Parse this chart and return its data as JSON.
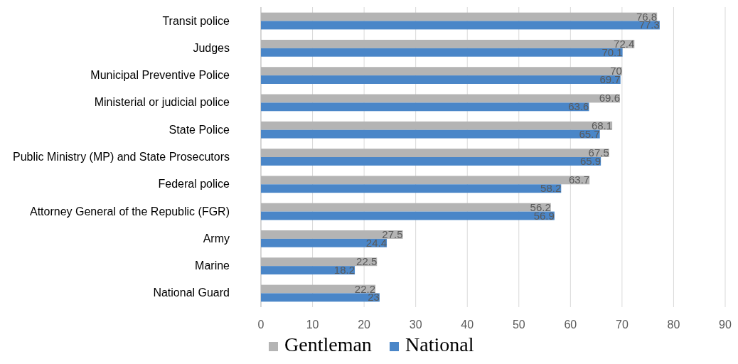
{
  "chart_data": {
    "type": "bar",
    "orientation": "horizontal",
    "categories": [
      "Transit police",
      "Judges",
      "Municipal Preventive Police",
      "Ministerial or judicial police",
      "State Police",
      "Public Ministry (MP) and State Prosecutors",
      "Federal police",
      "Attorney General of the Republic (FGR)",
      "Army",
      "Marine",
      "National Guard"
    ],
    "series": [
      {
        "name": "Gentleman",
        "color": "#b4b4b4",
        "values": [
          76.8,
          72.4,
          70,
          69.6,
          68.1,
          67.5,
          63.7,
          56.2,
          27.5,
          22.5,
          22.2
        ]
      },
      {
        "name": "National",
        "color": "#4a86c8",
        "values": [
          77.3,
          70.1,
          69.7,
          63.6,
          65.7,
          65.9,
          58.2,
          56.9,
          24.4,
          18.2,
          23
        ]
      }
    ],
    "xlim": [
      0,
      90
    ],
    "xticks": [
      0,
      10,
      20,
      30,
      40,
      50,
      60,
      70,
      80,
      90
    ],
    "grid": "x",
    "legend": "bottom",
    "data_labels": true
  }
}
